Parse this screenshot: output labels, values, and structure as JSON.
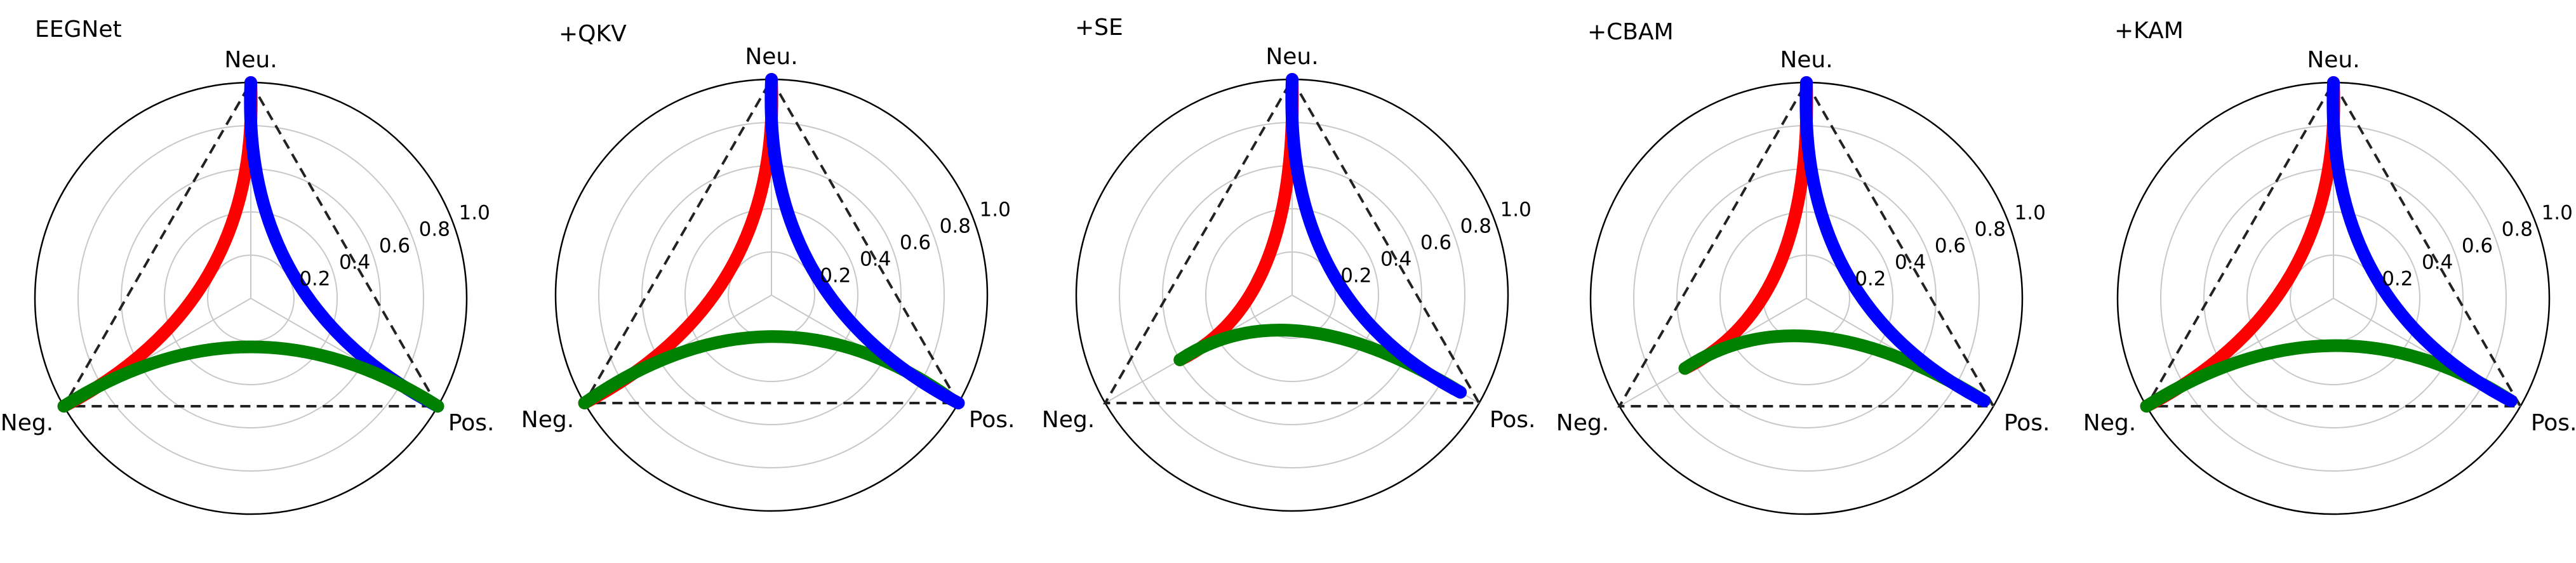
{
  "chart_data": [
    {
      "type": "radar",
      "title": "EEGNet",
      "axes": [
        "Neu.",
        "Pos.",
        "Neg."
      ],
      "radial_ticks": [
        "0.2",
        "0.4",
        "0.6",
        "0.8",
        "1.0"
      ],
      "rlim": [
        0,
        1.0
      ],
      "grid": true,
      "series": [
        {
          "color": "#ff0000",
          "from": "Neu.",
          "to": "Neg.",
          "values": {
            "Neu.": 1.0,
            "Pos.": 0.0,
            "Neg.": 1.0
          }
        },
        {
          "color": "#0000ff",
          "from": "Neu.",
          "to": "Pos.",
          "values": {
            "Neu.": 1.0,
            "Pos.": 1.0,
            "Neg.": 0.0
          }
        },
        {
          "color": "#008000",
          "from": "Neg.",
          "to": "Pos.",
          "values": {
            "Neu.": 0.0,
            "Pos.": 1.0,
            "Neg.": 1.0
          }
        }
      ]
    },
    {
      "type": "radar",
      "title": "+QKV",
      "axes": [
        "Neu.",
        "Pos.",
        "Neg."
      ],
      "radial_ticks": [
        "0.2",
        "0.4",
        "0.6",
        "0.8",
        "1.0"
      ],
      "rlim": [
        0,
        1.0
      ],
      "grid": true,
      "series": [
        {
          "color": "#ff0000",
          "from": "Neu.",
          "to": "Neg.",
          "values": {
            "Neu.": 1.0,
            "Pos.": 0.0,
            "Neg.": 1.0
          }
        },
        {
          "color": "#008000",
          "from": "Neg.",
          "to": "Pos.",
          "values": {
            "Neu.": 0.05,
            "Pos.": 0.95,
            "Neg.": 1.0
          }
        },
        {
          "color": "#0000ff",
          "from": "Neu.",
          "to": "Pos.",
          "values": {
            "Neu.": 1.0,
            "Pos.": 1.0,
            "Neg.": 0.0
          }
        }
      ]
    },
    {
      "type": "radar",
      "title": "+SE",
      "axes": [
        "Neu.",
        "Pos.",
        "Neg."
      ],
      "radial_ticks": [
        "0.2",
        "0.4",
        "0.6",
        "0.8",
        "1.0"
      ],
      "rlim": [
        0,
        1.0
      ],
      "grid": true,
      "series": [
        {
          "color": "#ff0000",
          "from": "Neu.",
          "to": "Neg.",
          "values": {
            "Neu.": 1.0,
            "Pos.": 0.0,
            "Neg.": 0.6
          }
        },
        {
          "color": "#008000",
          "from": "Neg.",
          "to": "Pos.",
          "values": {
            "Neu.": 0.0,
            "Pos.": 0.9,
            "Neg.": 0.6
          }
        },
        {
          "color": "#0000ff",
          "from": "Neu.",
          "to": "Pos.",
          "values": {
            "Neu.": 1.0,
            "Pos.": 0.9,
            "Neg.": 0.0
          }
        }
      ]
    },
    {
      "type": "radar",
      "title": "+CBAM",
      "axes": [
        "Neu.",
        "Pos.",
        "Neg."
      ],
      "radial_ticks": [
        "0.2",
        "0.4",
        "0.6",
        "0.8",
        "1.0"
      ],
      "rlim": [
        0,
        1.0
      ],
      "grid": true,
      "series": [
        {
          "color": "#ff0000",
          "from": "Neu.",
          "to": "Neg.",
          "values": {
            "Neu.": 1.0,
            "Pos.": 0.0,
            "Neg.": 0.65
          }
        },
        {
          "color": "#008000",
          "from": "Neg.",
          "to": "Pos.",
          "values": {
            "Neu.": 0.0,
            "Pos.": 0.95,
            "Neg.": 0.65
          }
        },
        {
          "color": "#0000ff",
          "from": "Neu.",
          "to": "Pos.",
          "values": {
            "Neu.": 1.0,
            "Pos.": 0.95,
            "Neg.": 0.0
          }
        }
      ]
    },
    {
      "type": "radar",
      "title": "+KAM",
      "axes": [
        "Neu.",
        "Pos.",
        "Neg."
      ],
      "radial_ticks": [
        "0.2",
        "0.4",
        "0.6",
        "0.8",
        "1.0"
      ],
      "rlim": [
        0,
        1.0
      ],
      "grid": true,
      "series": [
        {
          "color": "#ff0000",
          "from": "Neu.",
          "to": "Neg.",
          "values": {
            "Neu.": 1.0,
            "Pos.": 0.0,
            "Neg.": 1.0
          }
        },
        {
          "color": "#008000",
          "from": "Neg.",
          "to": "Pos.",
          "values": {
            "Neu.": 0.0,
            "Pos.": 0.95,
            "Neg.": 1.0
          }
        },
        {
          "color": "#0000ff",
          "from": "Neu.",
          "to": "Pos.",
          "values": {
            "Neu.": 1.0,
            "Pos.": 0.95,
            "Neg.": 0.0
          }
        }
      ]
    }
  ]
}
